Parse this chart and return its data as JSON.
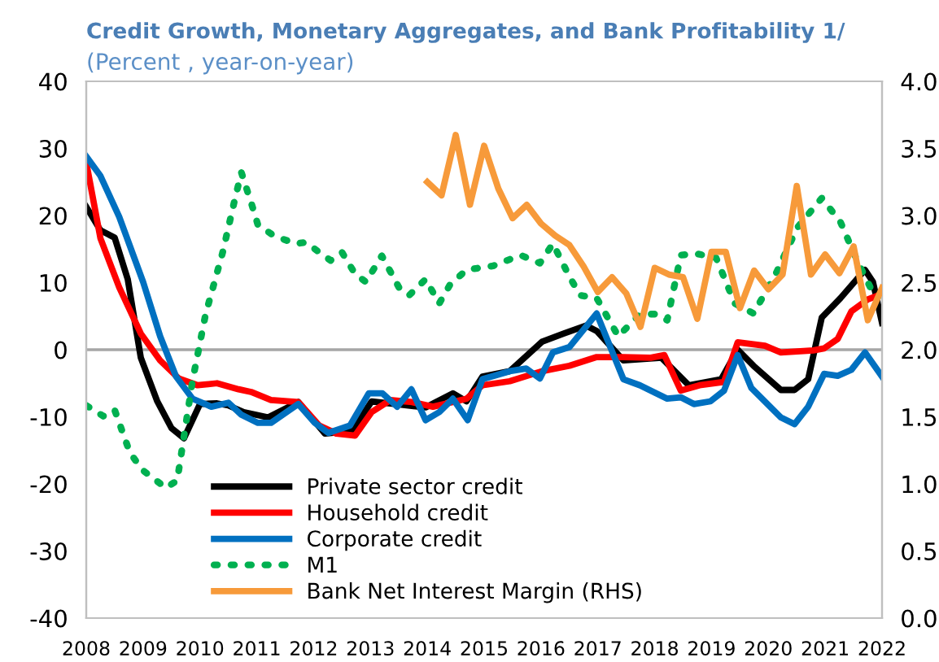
{
  "chart_data": {
    "type": "line",
    "title": "Credit Growth, Monetary Aggregates, and Bank Profitability 1/",
    "subtitle": "(Percent , year-on-year)",
    "xlim": [
      2008,
      2022
    ],
    "xticks": [
      2008,
      2009,
      2010,
      2011,
      2012,
      2013,
      2014,
      2015,
      2016,
      2017,
      2018,
      2019,
      2020,
      2021,
      2022
    ],
    "ylim": [
      -40,
      40
    ],
    "yticks": [
      -40,
      -30,
      -20,
      -10,
      0,
      10,
      20,
      30,
      40
    ],
    "y2lim": [
      0,
      4
    ],
    "y2ticks": [
      {
        "value": 0,
        "label": "0.0"
      },
      {
        "value": 0.5,
        "label": "0.5"
      },
      {
        "value": 1,
        "label": "1.0"
      },
      {
        "value": 1.5,
        "label": "1.5"
      },
      {
        "value": 2,
        "label": "2.0"
      },
      {
        "value": 2.5,
        "label": "2.5"
      },
      {
        "value": 3,
        "label": "3.0"
      },
      {
        "value": 3.5,
        "label": "3.5"
      },
      {
        "value": 4,
        "label": "4.0"
      }
    ],
    "grid": false,
    "legend": "bottom",
    "ref_lines": [
      {
        "axis": "y",
        "value": 0,
        "color": "#a6a6a6"
      }
    ],
    "series": [
      {
        "name": "Private sector credit",
        "color": "#000000",
        "line_style": "solid",
        "x": [
          2008,
          2008.25,
          2008.5,
          2008.73,
          2008.96,
          2009.25,
          2009.5,
          2009.72,
          2010,
          2010.3,
          2010.5,
          2010.77,
          2011.2,
          2011.73,
          2012.2,
          2012.68,
          2013.02,
          2013.45,
          2013.97,
          2014.45,
          2014.69,
          2014.97,
          2015.45,
          2016.02,
          2016.4,
          2016.79,
          2016.98,
          2017.45,
          2018.12,
          2018.6,
          2019.17,
          2019.46,
          2019.74,
          2020.22,
          2020.46,
          2020.7,
          2020.94,
          2021.27,
          2021.7,
          2021.84,
          2022
        ],
        "values": [
          21.3,
          17.8,
          16.7,
          10.5,
          -1.2,
          -7.7,
          -11.7,
          -13.2,
          -8.1,
          -8,
          -8.3,
          -9.3,
          -10.1,
          -7.8,
          -12.5,
          -12.1,
          -7.7,
          -8.1,
          -8.6,
          -6.5,
          -7.7,
          -4,
          -3.2,
          1.2,
          2.4,
          3.6,
          2.8,
          -1.6,
          -1.2,
          -5.3,
          -4.4,
          0,
          -2.4,
          -6,
          -6,
          -4.4,
          4.8,
          7.7,
          11.9,
          10.1,
          4
        ]
      },
      {
        "name": "Household credit",
        "color": "#ff0000",
        "line_style": "solid",
        "x": [
          2008,
          2008.25,
          2008.58,
          2008.96,
          2009.3,
          2009.63,
          2009.96,
          2010.3,
          2010.68,
          2010.9,
          2011.25,
          2011.73,
          2012.1,
          2012.4,
          2012.73,
          2013.02,
          2013.35,
          2013.73,
          2014.1,
          2014.5,
          2014.69,
          2014.97,
          2015.45,
          2016.02,
          2016.5,
          2016.98,
          2017.45,
          2017.93,
          2018.17,
          2018.46,
          2018.79,
          2019.22,
          2019.46,
          2019.94,
          2020.22,
          2020.79,
          2020.98,
          2021.22,
          2021.46,
          2021.75,
          2022
        ],
        "values": [
          27.9,
          16.6,
          9.3,
          2.4,
          -1.6,
          -4.3,
          -5.3,
          -5,
          -5.9,
          -6.3,
          -7.5,
          -7.8,
          -11.3,
          -12.5,
          -12.8,
          -9.3,
          -7.5,
          -7.8,
          -8.5,
          -7.7,
          -7.3,
          -5.3,
          -4.7,
          -3.2,
          -2.4,
          -1.1,
          -1.1,
          -1.2,
          -0.8,
          -6.1,
          -5.3,
          -4.8,
          1.1,
          0.6,
          -0.4,
          -0.1,
          0.2,
          1.6,
          5.7,
          7.5,
          8.3
        ]
      },
      {
        "name": "Corporate credit",
        "color": "#0070c0",
        "line_style": "solid",
        "x": [
          2008,
          2008.25,
          2008.58,
          2009,
          2009.3,
          2009.58,
          2009.87,
          2010.2,
          2010.5,
          2010.73,
          2011.02,
          2011.25,
          2011.73,
          2012.02,
          2012.26,
          2012.64,
          2012.97,
          2013.21,
          2013.47,
          2013.72,
          2013.97,
          2014.21,
          2014.45,
          2014.71,
          2014.97,
          2015.45,
          2015.74,
          2015.98,
          2016.21,
          2016.5,
          2016.98,
          2017.45,
          2017.74,
          2018.22,
          2018.46,
          2018.69,
          2018.98,
          2019.22,
          2019.46,
          2019.7,
          2020.22,
          2020.46,
          2020.7,
          2020.98,
          2021.22,
          2021.46,
          2021.7,
          2022
        ],
        "values": [
          28.8,
          25.9,
          19.8,
          10.1,
          2,
          -4,
          -7.3,
          -8.5,
          -7.9,
          -9.7,
          -10.9,
          -10.9,
          -8.1,
          -10.9,
          -12.4,
          -11.3,
          -6.5,
          -6.5,
          -8.5,
          -5.9,
          -10.5,
          -9.3,
          -7.3,
          -10.5,
          -4.4,
          -3.2,
          -2.8,
          -4.3,
          -0.4,
          0.4,
          5.4,
          -4.4,
          -5.3,
          -7.3,
          -7.1,
          -8.1,
          -7.7,
          -6.1,
          -0.8,
          -5.7,
          -10.1,
          -11.1,
          -8.5,
          -3.6,
          -3.9,
          -3,
          -0.4,
          -4
        ]
      },
      {
        "name": "M1",
        "color": "#00b050",
        "line_style": "dotted",
        "x": [
          2008,
          2008.3,
          2008.5,
          2008.77,
          2009,
          2009.4,
          2009.6,
          2009.87,
          2010.1,
          2010.4,
          2010.63,
          2010.73,
          2010.92,
          2011.02,
          2011.3,
          2011.68,
          2011.87,
          2012.1,
          2012.3,
          2012.5,
          2012.73,
          2012.92,
          2013.2,
          2013.5,
          2013.68,
          2013.97,
          2014.21,
          2014.4,
          2014.69,
          2015.16,
          2015.64,
          2015.98,
          2016.21,
          2016.5,
          2016.69,
          2016.98,
          2017.36,
          2017.74,
          2018.03,
          2018.22,
          2018.46,
          2018.74,
          2019.08,
          2019.41,
          2019.74,
          2020.13,
          2020.51,
          2020.94,
          2021.27,
          2021.56,
          2021.84,
          2022
        ],
        "values": [
          -8.3,
          -9.9,
          -9,
          -15.4,
          -18,
          -20.6,
          -19.5,
          -4.6,
          5.3,
          14.5,
          23,
          26.4,
          21.4,
          18.6,
          17,
          15.8,
          16,
          14.5,
          13.3,
          14.5,
          11.3,
          10.1,
          14,
          9.3,
          8.1,
          10.5,
          6.9,
          9.7,
          11.9,
          12.5,
          14.1,
          12.9,
          15.8,
          10.9,
          8.1,
          7.7,
          2,
          5.3,
          5.3,
          4.4,
          14.1,
          14.3,
          13.7,
          6.9,
          5.4,
          11.3,
          18.2,
          22.6,
          19,
          13.3,
          8.5,
          8.1
        ]
      },
      {
        "name": "Bank Net Interest Margin (RHS)",
        "color": "#f79a3a",
        "line_style": "solid",
        "axis": "y2",
        "x": [
          2014,
          2014.25,
          2014.5,
          2014.75,
          2015,
          2015.25,
          2015.5,
          2015.75,
          2016,
          2016.25,
          2016.5,
          2016.75,
          2017,
          2017.25,
          2017.5,
          2017.75,
          2018,
          2018.25,
          2018.5,
          2018.75,
          2019,
          2019.25,
          2019.5,
          2019.75,
          2020,
          2020.25,
          2020.5,
          2020.75,
          2021,
          2021.25,
          2021.5,
          2021.75,
          2022
        ],
        "values": [
          3.25,
          3.15,
          3.6,
          3.08,
          3.52,
          3.2,
          2.98,
          3.08,
          2.94,
          2.85,
          2.78,
          2.62,
          2.43,
          2.54,
          2.42,
          2.17,
          2.61,
          2.56,
          2.54,
          2.23,
          2.73,
          2.73,
          2.31,
          2.59,
          2.45,
          2.56,
          3.22,
          2.56,
          2.71,
          2.57,
          2.77,
          2.22,
          2.46
        ]
      }
    ]
  }
}
